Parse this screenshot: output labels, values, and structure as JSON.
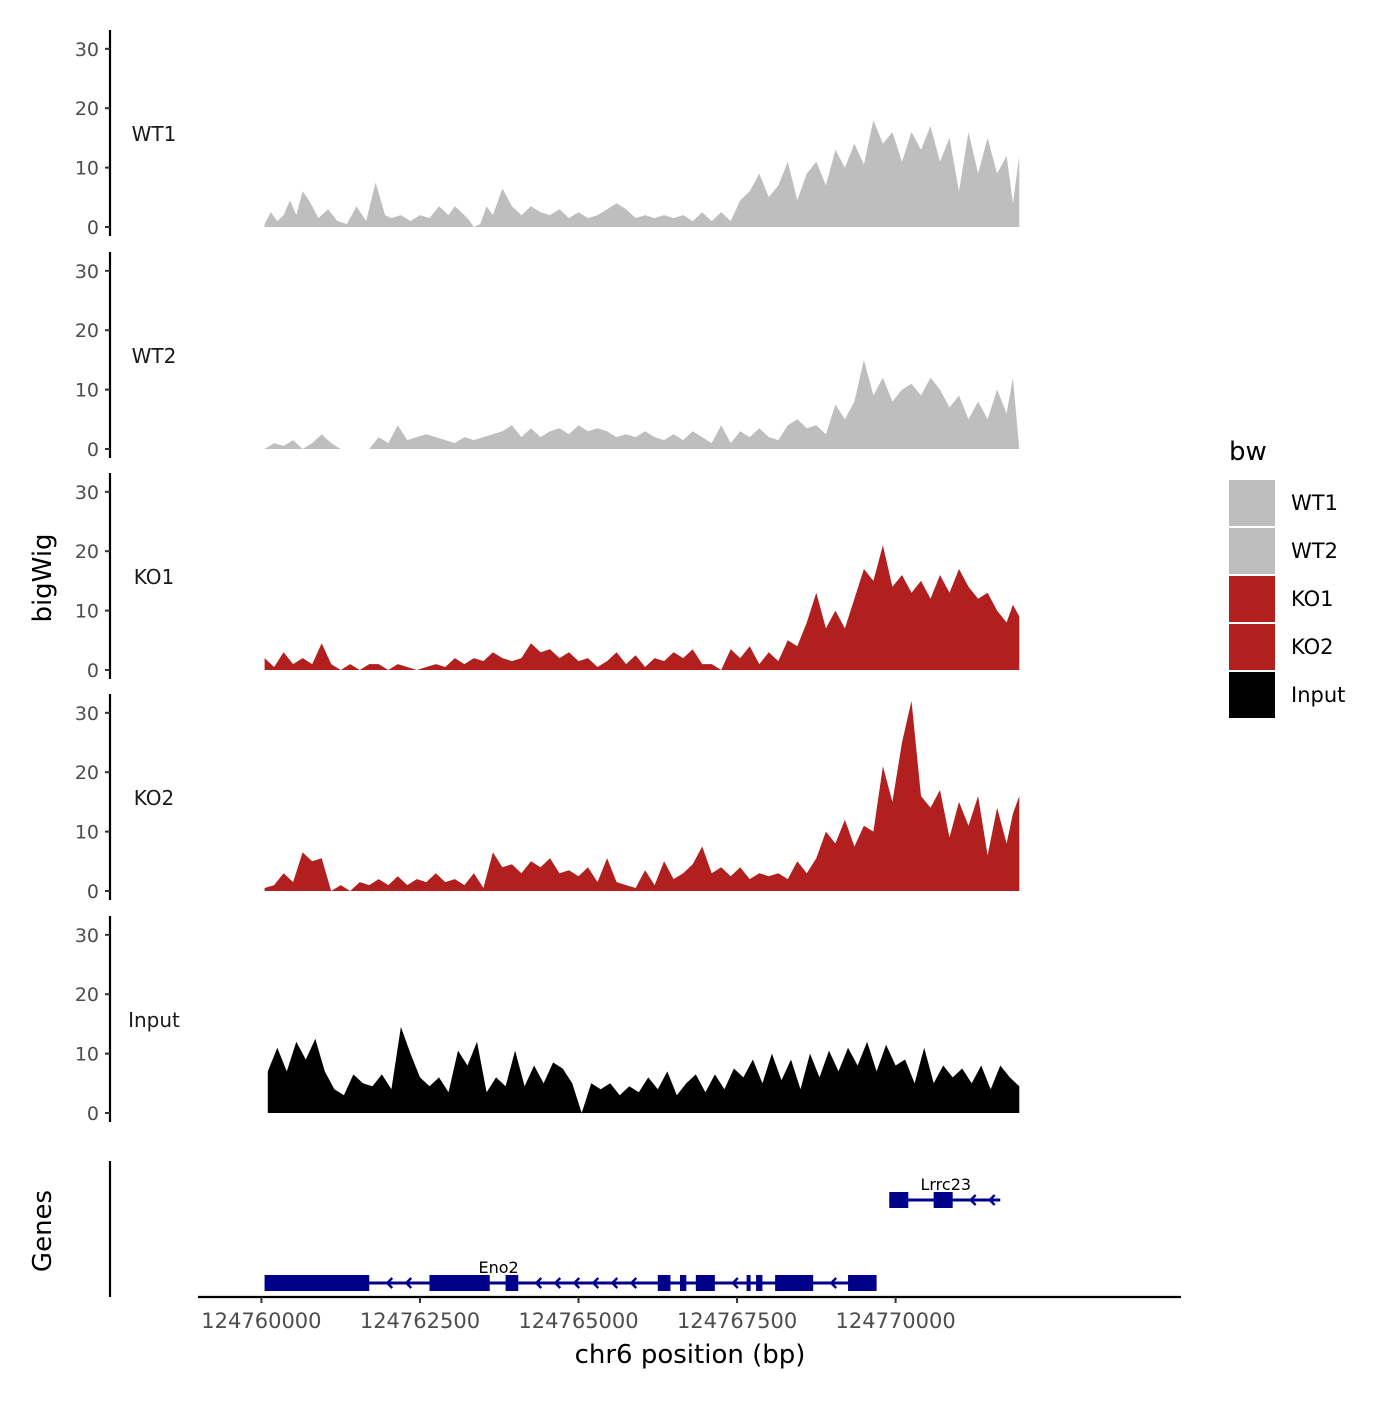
{
  "chart_data": {
    "type": "area",
    "ylabel": "bigWig",
    "genes_label": "Genes",
    "xlabel": "chr6 position (bp)",
    "xlim": [
      124759000,
      124774500
    ],
    "ylim": [
      0,
      33
    ],
    "y_ticks": [
      0,
      10,
      20,
      30
    ],
    "x_ticks": [
      124760000,
      124762500,
      124765000,
      124767500,
      124770000
    ],
    "x_tick_labels": [
      "124760000",
      "124762500",
      "124765000",
      "124767500",
      "124770000"
    ],
    "legend": {
      "title": "bw",
      "entries": [
        {
          "label": "WT1",
          "color": "#bebebe"
        },
        {
          "label": "WT2",
          "color": "#bebebe"
        },
        {
          "label": "KO1",
          "color": "#b21f1f"
        },
        {
          "label": "KO2",
          "color": "#b21f1f"
        },
        {
          "label": "Input",
          "color": "#000000"
        }
      ]
    },
    "series": [
      {
        "name": "WT1",
        "color": "#bebebe",
        "x": [
          124760050,
          124760150,
          124760250,
          124760350,
          124760450,
          124760550,
          124760650,
          124760750,
          124760900,
          124761050,
          124761200,
          124761350,
          124761500,
          124761650,
          124761800,
          124761950,
          124762050,
          124762200,
          124762350,
          124762500,
          124762650,
          124762800,
          124762950,
          124763050,
          124763150,
          124763250,
          124763350,
          124763450,
          124763550,
          124763650,
          124763800,
          124763950,
          124764100,
          124764250,
          124764400,
          124764550,
          124764700,
          124764850,
          124765000,
          124765150,
          124765300,
          124765450,
          124765600,
          124765750,
          124765900,
          124766050,
          124766200,
          124766350,
          124766500,
          124766650,
          124766800,
          124766950,
          124767100,
          124767250,
          124767400,
          124767550,
          124767700,
          124767850,
          124768000,
          124768150,
          124768300,
          124768450,
          124768600,
          124768750,
          124768900,
          124769050,
          124769200,
          124769350,
          124769500,
          124769650,
          124769800,
          124769950,
          124770100,
          124770250,
          124770400,
          124770550,
          124770700,
          124770850,
          124771000,
          124771150,
          124771300,
          124771450,
          124771600,
          124771750,
          124771850,
          124771950
        ],
        "values": [
          0.5,
          2.5,
          1,
          2,
          4.5,
          2,
          6,
          4.5,
          1.5,
          3,
          1,
          0.5,
          3.5,
          1,
          7.5,
          2,
          1.5,
          2,
          1,
          2,
          1.5,
          3.5,
          2,
          3.5,
          2.5,
          1.5,
          0,
          0.5,
          3.5,
          2,
          6.5,
          3.5,
          2,
          3.5,
          2.5,
          2,
          3,
          1.5,
          2.5,
          1.5,
          2,
          3,
          4,
          3,
          1.5,
          2,
          1.5,
          2,
          1.5,
          2,
          1,
          2.5,
          1,
          2.5,
          1,
          4.5,
          6,
          9,
          5,
          7,
          11,
          4.5,
          9,
          11,
          7,
          13,
          10,
          14,
          10.5,
          18,
          14,
          16,
          11,
          16,
          13,
          17,
          11,
          15,
          6,
          16,
          9,
          15,
          9,
          12,
          4,
          12
        ]
      },
      {
        "name": "WT2",
        "color": "#bebebe",
        "x": [
          124760050,
          124760200,
          124760350,
          124760500,
          124760650,
          124760800,
          124760950,
          124761100,
          124761250,
          124761400,
          124761550,
          124761700,
          124761850,
          124762000,
          124762150,
          124762300,
          124762450,
          124762600,
          124762750,
          124762900,
          124763050,
          124763200,
          124763350,
          124763500,
          124763650,
          124763800,
          124763950,
          124764100,
          124764250,
          124764400,
          124764550,
          124764700,
          124764850,
          124765000,
          124765150,
          124765300,
          124765450,
          124765600,
          124765750,
          124765900,
          124766050,
          124766200,
          124766350,
          124766500,
          124766650,
          124766800,
          124766950,
          124767100,
          124767250,
          124767400,
          124767550,
          124767700,
          124767850,
          124768000,
          124768150,
          124768300,
          124768450,
          124768600,
          124768750,
          124768900,
          124769050,
          124769200,
          124769350,
          124769500,
          124769650,
          124769800,
          124769950,
          124770100,
          124770250,
          124770400,
          124770550,
          124770700,
          124770850,
          124771000,
          124771150,
          124771300,
          124771450,
          124771600,
          124771750,
          124771850,
          124771950
        ],
        "values": [
          0,
          1,
          0.5,
          1.5,
          0,
          1,
          2.5,
          1,
          0,
          0,
          0,
          0,
          2,
          1,
          4,
          1.5,
          2,
          2.5,
          2,
          1.5,
          1,
          2,
          1.5,
          2,
          2.5,
          3,
          4,
          2,
          3.5,
          2,
          3,
          3.5,
          2.5,
          4,
          3,
          3.5,
          3,
          2,
          2.5,
          2,
          3,
          2,
          1.5,
          2.5,
          1.5,
          3,
          2,
          1,
          4,
          1,
          3,
          2,
          3.5,
          2,
          1.5,
          4,
          5,
          3.5,
          4,
          2.5,
          7.5,
          5,
          8,
          15,
          9,
          12,
          8,
          10,
          11,
          9,
          12,
          10,
          7,
          9,
          5,
          8,
          5,
          10,
          6,
          12,
          0
        ]
      },
      {
        "name": "KO1",
        "color": "#b21f1f",
        "x": [
          124760050,
          124760200,
          124760350,
          124760500,
          124760650,
          124760800,
          124760950,
          124761100,
          124761250,
          124761400,
          124761550,
          124761700,
          124761850,
          124762000,
          124762150,
          124762300,
          124762450,
          124762600,
          124762750,
          124762900,
          124763050,
          124763200,
          124763350,
          124763500,
          124763650,
          124763800,
          124763950,
          124764100,
          124764250,
          124764400,
          124764550,
          124764700,
          124764850,
          124765000,
          124765150,
          124765300,
          124765450,
          124765600,
          124765750,
          124765900,
          124766050,
          124766200,
          124766350,
          124766500,
          124766650,
          124766800,
          124766950,
          124767100,
          124767250,
          124767400,
          124767550,
          124767700,
          124767850,
          124768000,
          124768150,
          124768300,
          124768450,
          124768600,
          124768750,
          124768900,
          124769050,
          124769200,
          124769350,
          124769500,
          124769650,
          124769800,
          124769950,
          124770100,
          124770250,
          124770400,
          124770550,
          124770700,
          124770850,
          124771000,
          124771150,
          124771300,
          124771450,
          124771600,
          124771750,
          124771850,
          124771950
        ],
        "values": [
          2,
          0.5,
          3,
          1,
          2,
          1,
          4.5,
          1,
          0,
          1,
          0,
          1,
          1,
          0,
          1,
          0.5,
          0,
          0.5,
          1,
          0.5,
          2,
          1,
          2,
          1.5,
          3,
          2,
          1.5,
          2,
          4.5,
          3,
          3.5,
          2,
          3,
          1.5,
          2,
          0.5,
          1.5,
          3,
          1,
          2.5,
          0.5,
          2,
          1.5,
          3,
          2,
          3.5,
          1,
          1,
          0,
          3.5,
          2,
          4,
          1,
          3,
          1.5,
          5,
          4,
          8,
          13,
          7,
          10,
          7,
          12,
          17,
          15,
          21,
          14,
          16,
          13,
          15,
          12,
          16,
          13,
          17,
          14,
          12,
          13,
          10,
          8,
          11,
          9
        ]
      },
      {
        "name": "KO2",
        "color": "#b21f1f",
        "x": [
          124760050,
          124760200,
          124760350,
          124760500,
          124760650,
          124760800,
          124760950,
          124761100,
          124761250,
          124761400,
          124761550,
          124761700,
          124761850,
          124762000,
          124762150,
          124762300,
          124762450,
          124762600,
          124762750,
          124762900,
          124763050,
          124763200,
          124763350,
          124763500,
          124763650,
          124763800,
          124763950,
          124764100,
          124764250,
          124764400,
          124764550,
          124764700,
          124764850,
          124765000,
          124765150,
          124765300,
          124765450,
          124765600,
          124765750,
          124765900,
          124766050,
          124766200,
          124766350,
          124766500,
          124766650,
          124766800,
          124766950,
          124767100,
          124767250,
          124767400,
          124767550,
          124767700,
          124767850,
          124768000,
          124768150,
          124768300,
          124768450,
          124768600,
          124768750,
          124768900,
          124769050,
          124769200,
          124769350,
          124769500,
          124769650,
          124769800,
          124769950,
          124770100,
          124770250,
          124770400,
          124770550,
          124770700,
          124770850,
          124771000,
          124771150,
          124771300,
          124771450,
          124771600,
          124771750,
          124771850,
          124771950
        ],
        "values": [
          0.5,
          1,
          3,
          1.5,
          6.5,
          5,
          5.5,
          0,
          1,
          0,
          1.5,
          1,
          2,
          1,
          2.5,
          1,
          2,
          1.5,
          3,
          1.5,
          2,
          1,
          3,
          0.5,
          6.5,
          4,
          4.5,
          3,
          5,
          4,
          5.5,
          3,
          3.5,
          2.5,
          4,
          1.5,
          5.5,
          1.5,
          1,
          0.5,
          3.5,
          1,
          5,
          2,
          3,
          4.5,
          7.5,
          3,
          4,
          2.5,
          4,
          2,
          3,
          2.5,
          3,
          2,
          5,
          3,
          5.5,
          10,
          8,
          12,
          7.5,
          11,
          10,
          21,
          15,
          25,
          32,
          16,
          14,
          17,
          9,
          15,
          11,
          16,
          6,
          14,
          8,
          13,
          16
        ]
      },
      {
        "name": "Input",
        "color": "#000000",
        "x": [
          124760100,
          124760250,
          124760400,
          124760550,
          124760700,
          124760850,
          124761000,
          124761150,
          124761300,
          124761450,
          124761600,
          124761750,
          124761900,
          124762050,
          124762200,
          124762350,
          124762500,
          124762650,
          124762800,
          124762950,
          124763100,
          124763250,
          124763400,
          124763550,
          124763700,
          124763850,
          124764000,
          124764150,
          124764300,
          124764450,
          124764600,
          124764750,
          124764900,
          124765050,
          124765200,
          124765350,
          124765500,
          124765650,
          124765800,
          124765950,
          124766100,
          124766250,
          124766400,
          124766550,
          124766700,
          124766850,
          124767000,
          124767150,
          124767300,
          124767450,
          124767600,
          124767750,
          124767900,
          124768050,
          124768200,
          124768350,
          124768500,
          124768650,
          124768800,
          124768950,
          124769100,
          124769250,
          124769400,
          124769550,
          124769700,
          124769850,
          124770000,
          124770150,
          124770300,
          124770450,
          124770600,
          124770750,
          124770900,
          124771050,
          124771200,
          124771350,
          124771500,
          124771650,
          124771800,
          124771950
        ],
        "values": [
          7,
          11,
          7,
          12,
          9,
          12.5,
          7,
          4,
          3,
          6.5,
          5,
          4.5,
          6.5,
          4,
          14.5,
          10,
          6,
          4.5,
          6,
          3.5,
          10.5,
          8,
          12,
          3.5,
          6,
          4.5,
          10.5,
          4.5,
          8,
          5,
          8.5,
          7.5,
          5,
          0,
          5,
          4,
          5,
          3,
          4.5,
          3.5,
          6,
          4,
          7,
          3,
          5,
          6.5,
          3.5,
          6.5,
          4,
          7.5,
          6,
          9,
          5,
          10,
          5.5,
          9,
          4,
          10,
          6,
          10.5,
          7,
          11,
          8,
          12,
          7,
          11.5,
          8,
          9,
          5,
          11,
          5,
          8,
          6,
          7.5,
          5,
          8,
          4,
          8,
          6,
          4.5
        ]
      }
    ],
    "genes": [
      {
        "name": "Lrrc23",
        "start": 124769900,
        "end": 124771650,
        "strand": "-",
        "track": 1,
        "exons": [
          [
            124769900,
            124770200
          ],
          [
            124770600,
            124770900
          ]
        ]
      },
      {
        "name": "Eno2",
        "start": 124760050,
        "end": 124769700,
        "strand": "-",
        "track": 2,
        "exons": [
          [
            124760050,
            124761700
          ],
          [
            124762650,
            124763600
          ],
          [
            124763850,
            124764050
          ],
          [
            124766250,
            124766450
          ],
          [
            124766600,
            124766700
          ],
          [
            124766850,
            124767150
          ],
          [
            124767650,
            124767700
          ],
          [
            124767800,
            124767900
          ],
          [
            124768100,
            124768700
          ],
          [
            124769250,
            124769700
          ]
        ]
      }
    ]
  }
}
